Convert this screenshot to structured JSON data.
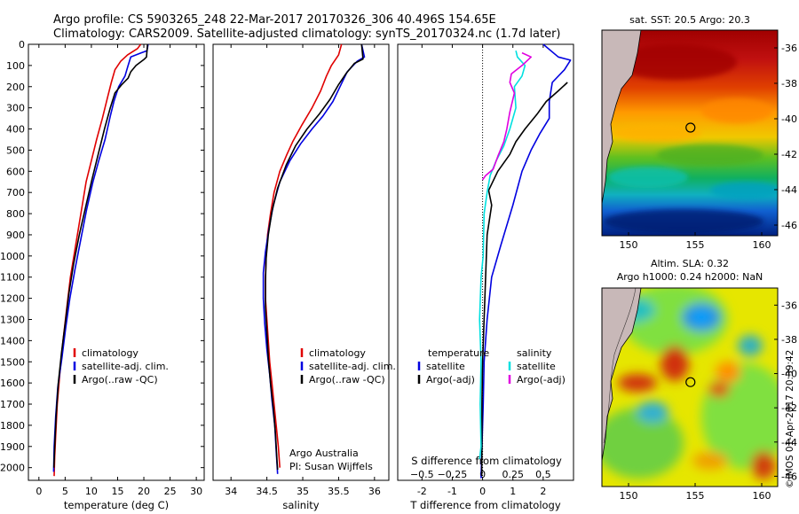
{
  "header": {
    "line1": "Argo profile: CS 5903265_248 22-Mar-2017 20170326_306 40.496S 154.65E",
    "line2": "Climatology: CARS2009. Satellite-adjusted climatology: synTS_20170324.nc (1.7d later)"
  },
  "colors": {
    "climatology": "#e00000",
    "satellite": "#0000e0",
    "argo": "#000000",
    "sat_salinity": "#00e0e0",
    "argo_salinity": "#e000e0"
  },
  "chart_data": [
    {
      "type": "line",
      "title": "",
      "xlabel": "temperature (deg C)",
      "ylabel": "",
      "xlim": [
        -2,
        31.5
      ],
      "ylim": [
        2060,
        0
      ],
      "x_ticks": [
        0,
        5,
        10,
        15,
        20,
        25,
        30
      ],
      "y_ticks": [
        0,
        100,
        200,
        300,
        400,
        500,
        600,
        700,
        800,
        900,
        1000,
        1100,
        1200,
        1300,
        1400,
        1500,
        1600,
        1700,
        1800,
        1900,
        2000
      ],
      "y_tick_labels": [
        "0",
        "100",
        "200",
        "300",
        "400",
        "500",
        "600",
        "700",
        "800",
        "900",
        "1000",
        "1100",
        "1200",
        "1300",
        "1400",
        "1500",
        "1600",
        "1700",
        "1800",
        "1900",
        "2000"
      ],
      "legend": [
        "climatology",
        "satellite-adj. clim.",
        "Argo(..raw -QC)"
      ],
      "series": [
        {
          "name": "climatology",
          "color": "#e00000",
          "points": [
            [
              19.4,
              0
            ],
            [
              18.8,
              20
            ],
            [
              16.9,
              50
            ],
            [
              15.6,
              80
            ],
            [
              14.5,
              120
            ],
            [
              13.8,
              180
            ],
            [
              13.1,
              250
            ],
            [
              12.1,
              350
            ],
            [
              11.0,
              450
            ],
            [
              10.0,
              550
            ],
            [
              9.0,
              650
            ],
            [
              8.0,
              800
            ],
            [
              7.0,
              950
            ],
            [
              6.0,
              1100
            ],
            [
              5.3,
              1250
            ],
            [
              4.6,
              1400
            ],
            [
              4.0,
              1550
            ],
            [
              3.5,
              1700
            ],
            [
              3.2,
              1850
            ],
            [
              3.0,
              1950
            ],
            [
              2.9,
              2040
            ]
          ]
        },
        {
          "name": "satellite-adj. clim.",
          "color": "#0000e0",
          "points": [
            [
              20.8,
              0
            ],
            [
              20.6,
              30
            ],
            [
              19.5,
              40
            ],
            [
              17.5,
              60
            ],
            [
              17.0,
              100
            ],
            [
              16.4,
              150
            ],
            [
              15.2,
              200
            ],
            [
              14.3,
              270
            ],
            [
              13.6,
              340
            ],
            [
              12.6,
              450
            ],
            [
              11.4,
              550
            ],
            [
              10.3,
              650
            ],
            [
              9.1,
              780
            ],
            [
              8.0,
              920
            ],
            [
              6.9,
              1060
            ],
            [
              5.9,
              1200
            ],
            [
              5.1,
              1340
            ],
            [
              4.4,
              1480
            ],
            [
              3.6,
              1620
            ],
            [
              3.2,
              1760
            ],
            [
              2.9,
              1900
            ],
            [
              2.8,
              2020
            ]
          ]
        },
        {
          "name": "Argo(..raw -QC)",
          "color": "#000000",
          "points": [
            [
              20.7,
              0
            ],
            [
              20.5,
              60
            ],
            [
              20.1,
              70
            ],
            [
              18.5,
              100
            ],
            [
              17.5,
              130
            ],
            [
              17.0,
              160
            ],
            [
              15.8,
              190
            ],
            [
              14.5,
              230
            ],
            [
              13.6,
              300
            ],
            [
              12.5,
              400
            ],
            [
              11.3,
              520
            ],
            [
              10.1,
              640
            ],
            [
              8.9,
              770
            ],
            [
              7.7,
              900
            ],
            [
              6.6,
              1040
            ],
            [
              5.7,
              1180
            ],
            [
              5.0,
              1320
            ],
            [
              4.3,
              1460
            ],
            [
              3.7,
              1600
            ],
            [
              3.3,
              1750
            ],
            [
              3.0,
              1900
            ],
            [
              2.85,
              2000
            ]
          ]
        }
      ]
    },
    {
      "type": "line",
      "title": "",
      "xlabel": "salinity",
      "ylabel": "",
      "xlim": [
        33.75,
        36.2
      ],
      "ylim": [
        2060,
        0
      ],
      "x_ticks": [
        34,
        34.5,
        35,
        35.5,
        36
      ],
      "x_tick_labels": [
        "34",
        "34.5",
        "35",
        "35.5",
        "36"
      ],
      "legend": [
        "climatology",
        "satellite-adj. clim.",
        "Argo(..raw -QC)"
      ],
      "series": [
        {
          "name": "climatology",
          "color": "#e00000",
          "points": [
            [
              35.54,
              0
            ],
            [
              35.5,
              50
            ],
            [
              35.4,
              100
            ],
            [
              35.33,
              150
            ],
            [
              35.25,
              220
            ],
            [
              35.13,
              300
            ],
            [
              34.99,
              380
            ],
            [
              34.86,
              460
            ],
            [
              34.78,
              520
            ],
            [
              34.68,
              600
            ],
            [
              34.6,
              700
            ],
            [
              34.55,
              800
            ],
            [
              34.51,
              900
            ],
            [
              34.49,
              1000
            ],
            [
              34.48,
              1100
            ],
            [
              34.48,
              1200
            ],
            [
              34.5,
              1300
            ],
            [
              34.52,
              1400
            ],
            [
              34.54,
              1500
            ],
            [
              34.57,
              1600
            ],
            [
              34.6,
              1700
            ],
            [
              34.63,
              1800
            ],
            [
              34.66,
              1900
            ],
            [
              34.68,
              2000
            ]
          ]
        },
        {
          "name": "satellite-adj. clim.",
          "color": "#0000e0",
          "points": [
            [
              35.82,
              0
            ],
            [
              35.86,
              60
            ],
            [
              35.76,
              80
            ],
            [
              35.62,
              130
            ],
            [
              35.52,
              200
            ],
            [
              35.42,
              270
            ],
            [
              35.28,
              340
            ],
            [
              35.13,
              400
            ],
            [
              34.97,
              470
            ],
            [
              34.82,
              550
            ],
            [
              34.68,
              650
            ],
            [
              34.59,
              760
            ],
            [
              34.53,
              870
            ],
            [
              34.48,
              980
            ],
            [
              34.45,
              1080
            ],
            [
              34.45,
              1200
            ],
            [
              34.47,
              1320
            ],
            [
              34.5,
              1440
            ],
            [
              34.54,
              1560
            ],
            [
              34.57,
              1680
            ],
            [
              34.61,
              1800
            ],
            [
              34.63,
              1920
            ],
            [
              34.65,
              2030
            ]
          ]
        },
        {
          "name": "Argo(..raw -QC)",
          "color": "#000000",
          "points": [
            [
              35.82,
              0
            ],
            [
              35.84,
              70
            ],
            [
              35.72,
              90
            ],
            [
              35.6,
              140
            ],
            [
              35.5,
              190
            ],
            [
              35.38,
              260
            ],
            [
              35.23,
              330
            ],
            [
              35.06,
              400
            ],
            [
              34.9,
              480
            ],
            [
              34.77,
              570
            ],
            [
              34.65,
              680
            ],
            [
              34.57,
              790
            ],
            [
              34.52,
              900
            ],
            [
              34.49,
              1010
            ],
            [
              34.48,
              1120
            ],
            [
              34.48,
              1240
            ],
            [
              34.5,
              1360
            ],
            [
              34.52,
              1480
            ],
            [
              34.55,
              1600
            ],
            [
              34.59,
              1720
            ],
            [
              34.62,
              1840
            ],
            [
              34.64,
              1960
            ],
            [
              34.65,
              2010
            ]
          ]
        }
      ],
      "annotation": [
        "Argo Australia",
        "PI: Susan Wijffels"
      ]
    },
    {
      "type": "line",
      "title": "",
      "xlabel": "T difference from climatology",
      "x2label": "S difference from climatology",
      "ylabel": "",
      "xlim": [
        -2.8,
        3.0
      ],
      "ylim": [
        2060,
        0
      ],
      "x_ticks": [
        -2,
        -1,
        0,
        1,
        2
      ],
      "x2_ticks": [
        -0.5,
        -0.25,
        0,
        0.25,
        0.5
      ],
      "x2_tick_labels": [
        "−0.5",
        "−0.25",
        "0",
        "0.25",
        "0.5"
      ],
      "legend_groups": [
        {
          "title": "temperature",
          "entries": [
            "satellite",
            "Argo(-adj)"
          ]
        },
        {
          "title": "salinity",
          "entries": [
            "satellite",
            "Argo(-adj)"
          ]
        }
      ],
      "series": [
        {
          "name": "satellite",
          "group": "temperature",
          "color": "#0000e0",
          "points": [
            [
              2.0,
              0
            ],
            [
              2.5,
              60
            ],
            [
              2.9,
              75
            ],
            [
              2.7,
              120
            ],
            [
              2.3,
              180
            ],
            [
              2.2,
              270
            ],
            [
              2.2,
              350
            ],
            [
              1.9,
              420
            ],
            [
              1.6,
              500
            ],
            [
              1.3,
              600
            ],
            [
              1.0,
              760
            ],
            [
              0.6,
              950
            ],
            [
              0.3,
              1100
            ],
            [
              0.15,
              1300
            ],
            [
              0.05,
              1500
            ],
            [
              0.02,
              1700
            ],
            [
              -0.02,
              1900
            ],
            [
              -0.05,
              2050
            ]
          ]
        },
        {
          "name": "Argo(-adj)",
          "group": "temperature",
          "color": "#000000",
          "points": [
            [
              2.8,
              180
            ],
            [
              2.5,
              220
            ],
            [
              2.1,
              270
            ],
            [
              1.8,
              330
            ],
            [
              1.4,
              400
            ],
            [
              1.1,
              460
            ],
            [
              0.9,
              520
            ],
            [
              0.5,
              600
            ],
            [
              0.2,
              690
            ],
            [
              0.3,
              760
            ],
            [
              0.15,
              900
            ],
            [
              0.1,
              1100
            ],
            [
              0.05,
              1300
            ],
            [
              0.0,
              1500
            ],
            [
              -0.02,
              1700
            ],
            [
              -0.02,
              1900
            ],
            [
              -0.03,
              2040
            ]
          ]
        },
        {
          "name": "satellite",
          "group": "salinity",
          "color": "#00e0e0",
          "points": [
            [
              1.1,
              30
            ],
            [
              1.15,
              60
            ],
            [
              1.4,
              100
            ],
            [
              1.3,
              150
            ],
            [
              1.05,
              200
            ],
            [
              1.1,
              300
            ],
            [
              0.9,
              400
            ],
            [
              0.7,
              480
            ],
            [
              0.45,
              550
            ],
            [
              0.25,
              620
            ],
            [
              0.15,
              700
            ],
            [
              0.05,
              800
            ],
            [
              0.02,
              1000
            ],
            [
              -0.05,
              1100
            ],
            [
              -0.1,
              1300
            ],
            [
              -0.05,
              1500
            ],
            [
              -0.08,
              1700
            ],
            [
              -0.05,
              1900
            ],
            [
              -0.1,
              1960
            ]
          ]
        },
        {
          "name": "Argo(-adj)",
          "group": "salinity",
          "color": "#e000e0",
          "points": [
            [
              1.3,
              40
            ],
            [
              1.6,
              60
            ],
            [
              1.3,
              100
            ],
            [
              0.95,
              140
            ],
            [
              0.9,
              180
            ],
            [
              1.05,
              230
            ],
            [
              0.9,
              320
            ],
            [
              0.8,
              400
            ],
            [
              0.7,
              460
            ],
            [
              0.5,
              530
            ],
            [
              0.35,
              590
            ],
            [
              0.1,
              620
            ],
            [
              0.0,
              640
            ]
          ]
        }
      ]
    }
  ],
  "maps": [
    {
      "title": "sat. SST: 20.5 Argo: 20.3",
      "x_ticks": [
        "150",
        "155",
        "160"
      ],
      "y_ticks": [
        "-36",
        "-38",
        "-40",
        "-42",
        "-44",
        "-46"
      ],
      "marker": {
        "lon": 154.65,
        "lat": -40.5
      }
    },
    {
      "title_line1": "Altim. SLA: 0.32",
      "title_line2": "Argo h1000: 0.24 h2000: NaN",
      "x_ticks": [
        "150",
        "155",
        "160"
      ],
      "y_ticks": [
        "-36",
        "-38",
        "-40",
        "-42",
        "-44",
        "-46"
      ],
      "marker": {
        "lon": 154.65,
        "lat": -40.5
      }
    }
  ],
  "stamp": "©IMOS 01-Apr-2017 20:39:42"
}
